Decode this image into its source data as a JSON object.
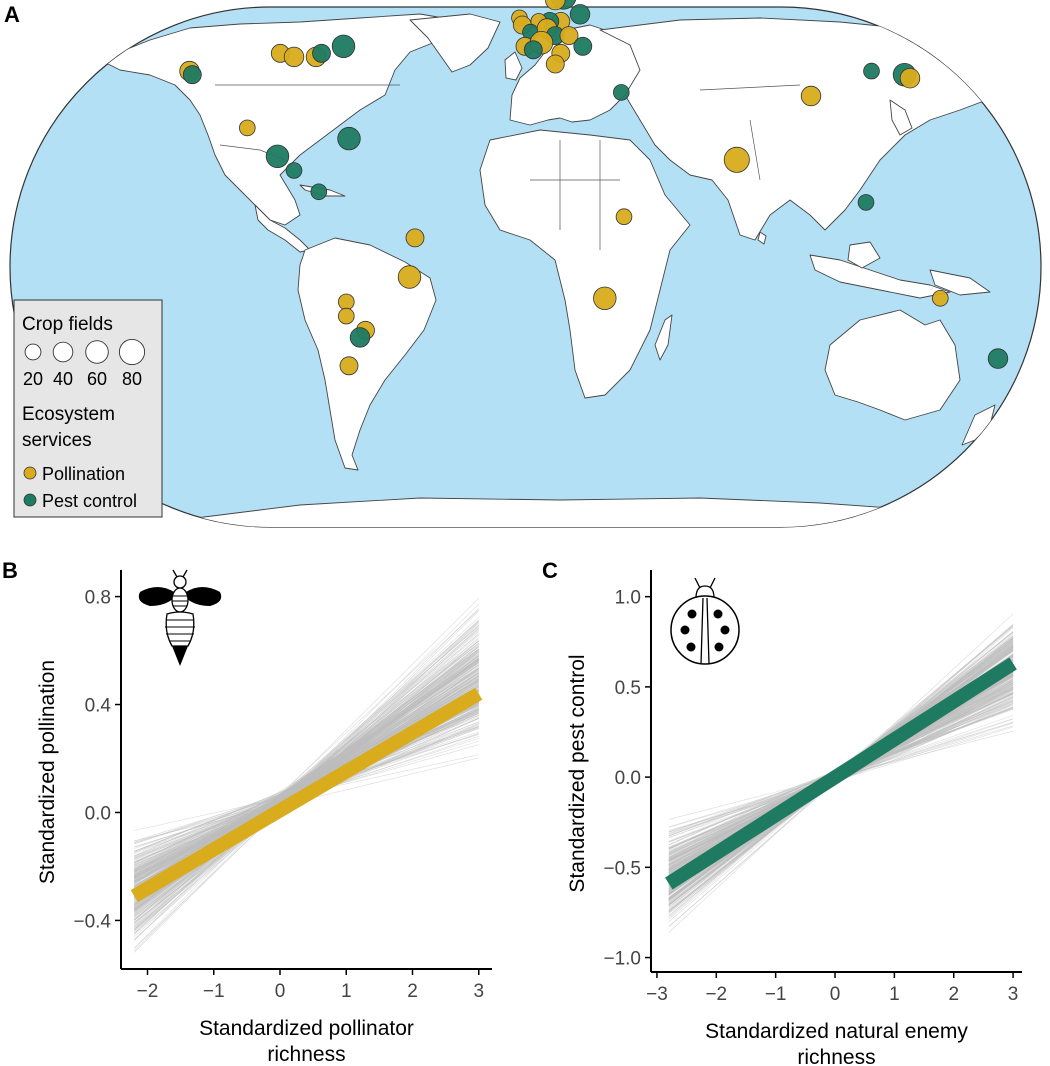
{
  "panels": {
    "a": "A",
    "b": "B",
    "c": "C"
  },
  "colors": {
    "ocean": "#b3e0f5",
    "land": "#ffffff",
    "pollination": "#d9ac1e",
    "pest_control": "#1f7a62",
    "gray_lines": "#bdbdbd",
    "legend_bg": "#e6e6e6"
  },
  "map": {
    "legend": {
      "size_title": "Crop fields",
      "sizes": [
        {
          "label": "20",
          "value": 20
        },
        {
          "label": "40",
          "value": 40
        },
        {
          "label": "60",
          "value": 60
        },
        {
          "label": "80",
          "value": 80
        }
      ],
      "service_title_line1": "Ecosystem",
      "service_title_line2": "services",
      "services": [
        {
          "label": "Pollination",
          "service": "pollination"
        },
        {
          "label": "Pest control",
          "service": "pest_control"
        }
      ]
    },
    "sites": [
      {
        "lon": 14,
        "lat": 59,
        "fields": 80,
        "service": "pest_control"
      },
      {
        "lon": 11,
        "lat": 58,
        "fields": 40,
        "service": "pollination"
      },
      {
        "lon": 20,
        "lat": 54,
        "fields": 40,
        "service": "pest_control"
      },
      {
        "lon": 13,
        "lat": 52,
        "fields": 30,
        "service": "pollination"
      },
      {
        "lon": 9,
        "lat": 52,
        "fields": 30,
        "service": "pest_control"
      },
      {
        "lon": 5,
        "lat": 52,
        "fields": 20,
        "service": "pollination"
      },
      {
        "lon": -2,
        "lat": 53,
        "fields": 20,
        "service": "pollination"
      },
      {
        "lon": -1,
        "lat": 51,
        "fields": 30,
        "service": "pollination"
      },
      {
        "lon": 2,
        "lat": 49,
        "fields": 20,
        "service": "pest_control"
      },
      {
        "lon": 8,
        "lat": 50,
        "fields": 40,
        "service": "pollination"
      },
      {
        "lon": 11,
        "lat": 48,
        "fields": 30,
        "service": "pest_control"
      },
      {
        "lon": 16,
        "lat": 48,
        "fields": 30,
        "service": "pollination"
      },
      {
        "lon": 0,
        "lat": 45,
        "fields": 30,
        "service": "pollination"
      },
      {
        "lon": 6,
        "lat": 46,
        "fields": 60,
        "service": "pollination"
      },
      {
        "lon": 3,
        "lat": 44,
        "fields": 30,
        "service": "pest_control"
      },
      {
        "lon": 13,
        "lat": 43,
        "fields": 30,
        "service": "pollination"
      },
      {
        "lon": 21,
        "lat": 45,
        "fields": 30,
        "service": "pest_control"
      },
      {
        "lon": 11,
        "lat": 40,
        "fields": 30,
        "service": "pollination"
      },
      {
        "lon": 35,
        "lat": 32,
        "fields": 20,
        "service": "pest_control"
      },
      {
        "lon": -122,
        "lat": 38,
        "fields": 40,
        "service": "pollination"
      },
      {
        "lon": -121,
        "lat": 37,
        "fields": 30,
        "service": "pest_control"
      },
      {
        "lon": -89,
        "lat": 43,
        "fields": 30,
        "service": "pollination"
      },
      {
        "lon": -84,
        "lat": 42,
        "fields": 40,
        "service": "pollination"
      },
      {
        "lon": -76,
        "lat": 42,
        "fields": 40,
        "service": "pollination"
      },
      {
        "lon": -74,
        "lat": 43,
        "fields": 30,
        "service": "pest_control"
      },
      {
        "lon": -66,
        "lat": 45,
        "fields": 60,
        "service": "pest_control"
      },
      {
        "lon": -101,
        "lat": 22,
        "fields": 20,
        "service": "pollination"
      },
      {
        "lon": -64,
        "lat": 19,
        "fields": 60,
        "service": "pest_control"
      },
      {
        "lon": -90,
        "lat": 14,
        "fields": 60,
        "service": "pest_control"
      },
      {
        "lon": -84,
        "lat": 10,
        "fields": 20,
        "service": "pest_control"
      },
      {
        "lon": -75,
        "lat": 4,
        "fields": 20,
        "service": "pest_control"
      },
      {
        "lon": -40,
        "lat": -9,
        "fields": 30,
        "service": "pollination"
      },
      {
        "lon": -42,
        "lat": -20,
        "fields": 60,
        "service": "pollination"
      },
      {
        "lon": -65,
        "lat": -27,
        "fields": 20,
        "service": "pollination"
      },
      {
        "lon": -65,
        "lat": -31,
        "fields": 20,
        "service": "pollination"
      },
      {
        "lon": -58,
        "lat": -35,
        "fields": 30,
        "service": "pollination"
      },
      {
        "lon": -60,
        "lat": -37,
        "fields": 40,
        "service": "pest_control"
      },
      {
        "lon": -64,
        "lat": -45,
        "fields": 30,
        "service": "pollination"
      },
      {
        "lon": 77,
        "lat": 13,
        "fields": 80,
        "service": "pollination"
      },
      {
        "lon": 104,
        "lat": 31,
        "fields": 40,
        "service": "pollination"
      },
      {
        "lon": 126,
        "lat": 38,
        "fields": 20,
        "service": "pest_control"
      },
      {
        "lon": 138,
        "lat": 37,
        "fields": 60,
        "service": "pest_control"
      },
      {
        "lon": 140,
        "lat": 36,
        "fields": 40,
        "service": "pollination"
      },
      {
        "lon": 36,
        "lat": -3,
        "fields": 20,
        "service": "pollination"
      },
      {
        "lon": 29,
        "lat": -26,
        "fields": 60,
        "service": "pollination"
      },
      {
        "lon": 124,
        "lat": 1,
        "fields": 20,
        "service": "pest_control"
      },
      {
        "lon": 151,
        "lat": -26,
        "fields": 20,
        "service": "pollination"
      },
      {
        "lon": 172,
        "lat": -43,
        "fields": 40,
        "service": "pest_control"
      }
    ]
  },
  "chart_data": [
    {
      "type": "line",
      "panel": "B",
      "xlabel_line1": "Standardized pollinator",
      "xlabel_line2": "richness",
      "ylabel": "Standardized pollination",
      "xlim": [
        -2.4,
        3.2
      ],
      "ylim": [
        -0.58,
        0.88
      ],
      "xticks": [
        -2,
        -1,
        0,
        1,
        2,
        3
      ],
      "yticks": [
        -0.4,
        0.0,
        0.4,
        0.8
      ],
      "xtick_labels": [
        "−2",
        "−1",
        "0",
        "1",
        "2",
        "3"
      ],
      "ytick_labels": [
        "−0.4",
        "0.0",
        "0.4",
        "0.8"
      ],
      "x_range": [
        -2.2,
        3.0
      ],
      "fit_line": {
        "x": [
          -2.2,
          3.0
        ],
        "y": [
          -0.31,
          0.44
        ],
        "color": "pollination"
      },
      "posterior_lines": {
        "count": 300,
        "intercept_range": [
          0.0,
          0.08
        ],
        "slope_range": [
          0.03,
          0.27
        ]
      },
      "icon": "bee-icon"
    },
    {
      "type": "line",
      "panel": "C",
      "xlabel_line1": "Standardized natural enemy",
      "xlabel_line2": "richness",
      "ylabel": "Standardized pest control",
      "xlim": [
        -3.1,
        3.15
      ],
      "ylim": [
        -1.08,
        1.12
      ],
      "xticks": [
        -3,
        -2,
        -1,
        0,
        1,
        2,
        3
      ],
      "yticks": [
        -1.0,
        -0.5,
        0.0,
        0.5,
        1.0
      ],
      "xtick_labels": [
        "−3",
        "−2",
        "−1",
        "0",
        "1",
        "2",
        "3"
      ],
      "ytick_labels": [
        "−1.0",
        "−0.5",
        "0.0",
        "0.5",
        "1.0"
      ],
      "x_range": [
        -2.8,
        3.0
      ],
      "fit_line": {
        "x": [
          -2.8,
          3.0
        ],
        "y": [
          -0.59,
          0.63
        ],
        "color": "pest_control"
      },
      "posterior_lines": {
        "count": 300,
        "intercept_range": [
          -0.04,
          0.04
        ],
        "slope_range": [
          0.07,
          0.33
        ]
      },
      "icon": "ladybug-icon"
    }
  ]
}
